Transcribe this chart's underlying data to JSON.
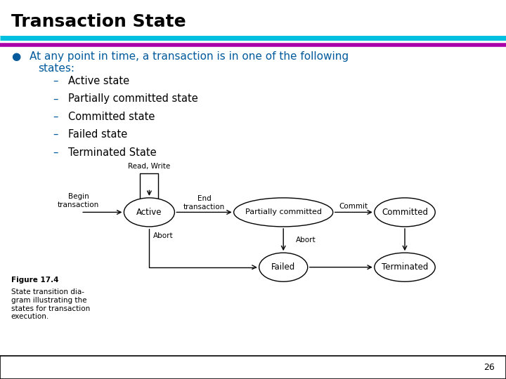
{
  "title": "Transaction State",
  "title_fontsize": 18,
  "title_fontweight": "bold",
  "title_color": "#000000",
  "line1_color": "#00BFDF",
  "line2_color": "#AA00AA",
  "bullet_color": "#005A9C",
  "bullet_fontsize": 11,
  "sub_items": [
    "Active state",
    "Partially committed state",
    "Committed state",
    "Failed state",
    "Terminated State"
  ],
  "sub_fontsize": 10.5,
  "sub_color": "#000000",
  "dash_color": "#005A9C",
  "fig_caption_bold": "Figure 17.4",
  "fig_caption_text": "State transition dia-\ngram illustrating the\nstates for transaction\nexecution.",
  "fig_caption_fontsize": 7.5,
  "page_number": "26",
  "bg_color": "#FFFFFF"
}
